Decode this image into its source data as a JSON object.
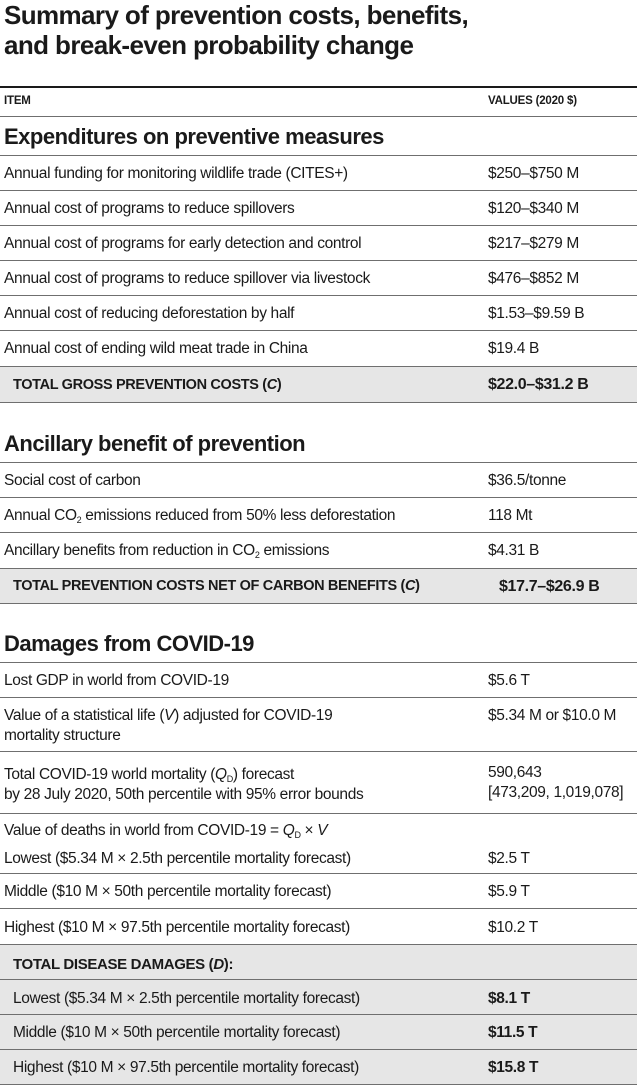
{
  "title": {
    "line1": "Summary of prevention costs, benefits,",
    "line2": "and break-even probability change"
  },
  "columns": {
    "item": "ITEM",
    "values": "VALUES (2020 $)"
  },
  "sections": {
    "expenditures": {
      "title": "Expenditures on preventive measures",
      "rows": [
        {
          "label": "Annual funding for monitoring wildlife trade (CITES+)",
          "value": "$250–$750 M"
        },
        {
          "label": "Annual cost of programs to reduce spillovers",
          "value": "$120–$340 M"
        },
        {
          "label": "Annual cost of programs for early detection and control",
          "value": "$217–$279 M"
        },
        {
          "label": "Annual cost of programs to reduce spillover via livestock",
          "value": "$476–$852 M"
        },
        {
          "label": "Annual cost of reducing deforestation by half",
          "value": "$1.53–$9.59 B"
        },
        {
          "label": "Annual cost of ending wild meat trade in China",
          "value": "$19.4 B"
        }
      ],
      "total": {
        "label_pre": "TOTAL GROSS PREVENTION COSTS (",
        "label_var": "C",
        "label_post": ")",
        "value": "$22.0–$31.2 B"
      }
    },
    "ancillary": {
      "title": "Ancillary benefit of prevention",
      "rows": [
        {
          "label": "Social cost of carbon",
          "value": "$36.5/tonne"
        },
        {
          "label_pre": "Annual CO",
          "label_sub": "2",
          "label_post": " emissions reduced from 50% less deforestation",
          "value": "118 Mt"
        },
        {
          "label_pre": "Ancillary benefits from reduction in CO",
          "label_sub": "2",
          "label_post": " emissions",
          "value": "$4.31 B"
        }
      ],
      "total": {
        "label_pre": "TOTAL PREVENTION COSTS NET OF CARBON BENEFITS (",
        "label_var": "C",
        "label_post": ")",
        "value": "$17.7–$26.9 B"
      }
    },
    "damages": {
      "title": "Damages from COVID-19",
      "rows": {
        "gdp": {
          "label": "Lost GDP in world from COVID-19",
          "value": "$5.6 T"
        },
        "vsl": {
          "label_pre": "Value of a statistical life (",
          "label_var": "V",
          "label_post": ") adjusted for COVID-19",
          "label_line2": "mortality structure",
          "value": "$5.34 M or $10.0 M"
        },
        "mortality": {
          "label_pre": "Total COVID-19 world mortality (",
          "label_var": "Q",
          "label_sub": "D",
          "label_post": ") forecast",
          "label_line2": "by 28 July 2020, 50th percentile with 95% error bounds",
          "value_line1": "590,643",
          "value_line2": "[473,209, 1,019,078]"
        },
        "deaths": {
          "label_pre": "Value of deaths in world from COVID-19 = ",
          "label_var1": "Q",
          "label_sub": "D",
          "label_times": " × ",
          "label_var2": "V",
          "lowest": {
            "label": "Lowest  ($5.34 M × 2.5th percentile mortality forecast)",
            "value": "$2.5 T"
          }
        },
        "middle": {
          "label": "Middle ($10 M × 50th percentile mortality forecast)",
          "value": "$5.9 T"
        },
        "highest": {
          "label": "Highest ($10 M × 97.5th percentile mortality forecast)",
          "value": "$10.2 T"
        }
      },
      "total": {
        "label_pre": "TOTAL DISEASE DAMAGES (",
        "label_var": "D",
        "label_post": "):",
        "rows": [
          {
            "label": "Lowest  ($5.34 M × 2.5th percentile mortality forecast)",
            "value": "$8.1 T"
          },
          {
            "label": "Middle ($10 M × 50th percentile mortality forecast)",
            "value": "$11.5 T"
          },
          {
            "label": "Highest ($10 M × 97.5th percentile mortality forecast)",
            "value": "$15.8 T"
          }
        ]
      }
    }
  }
}
